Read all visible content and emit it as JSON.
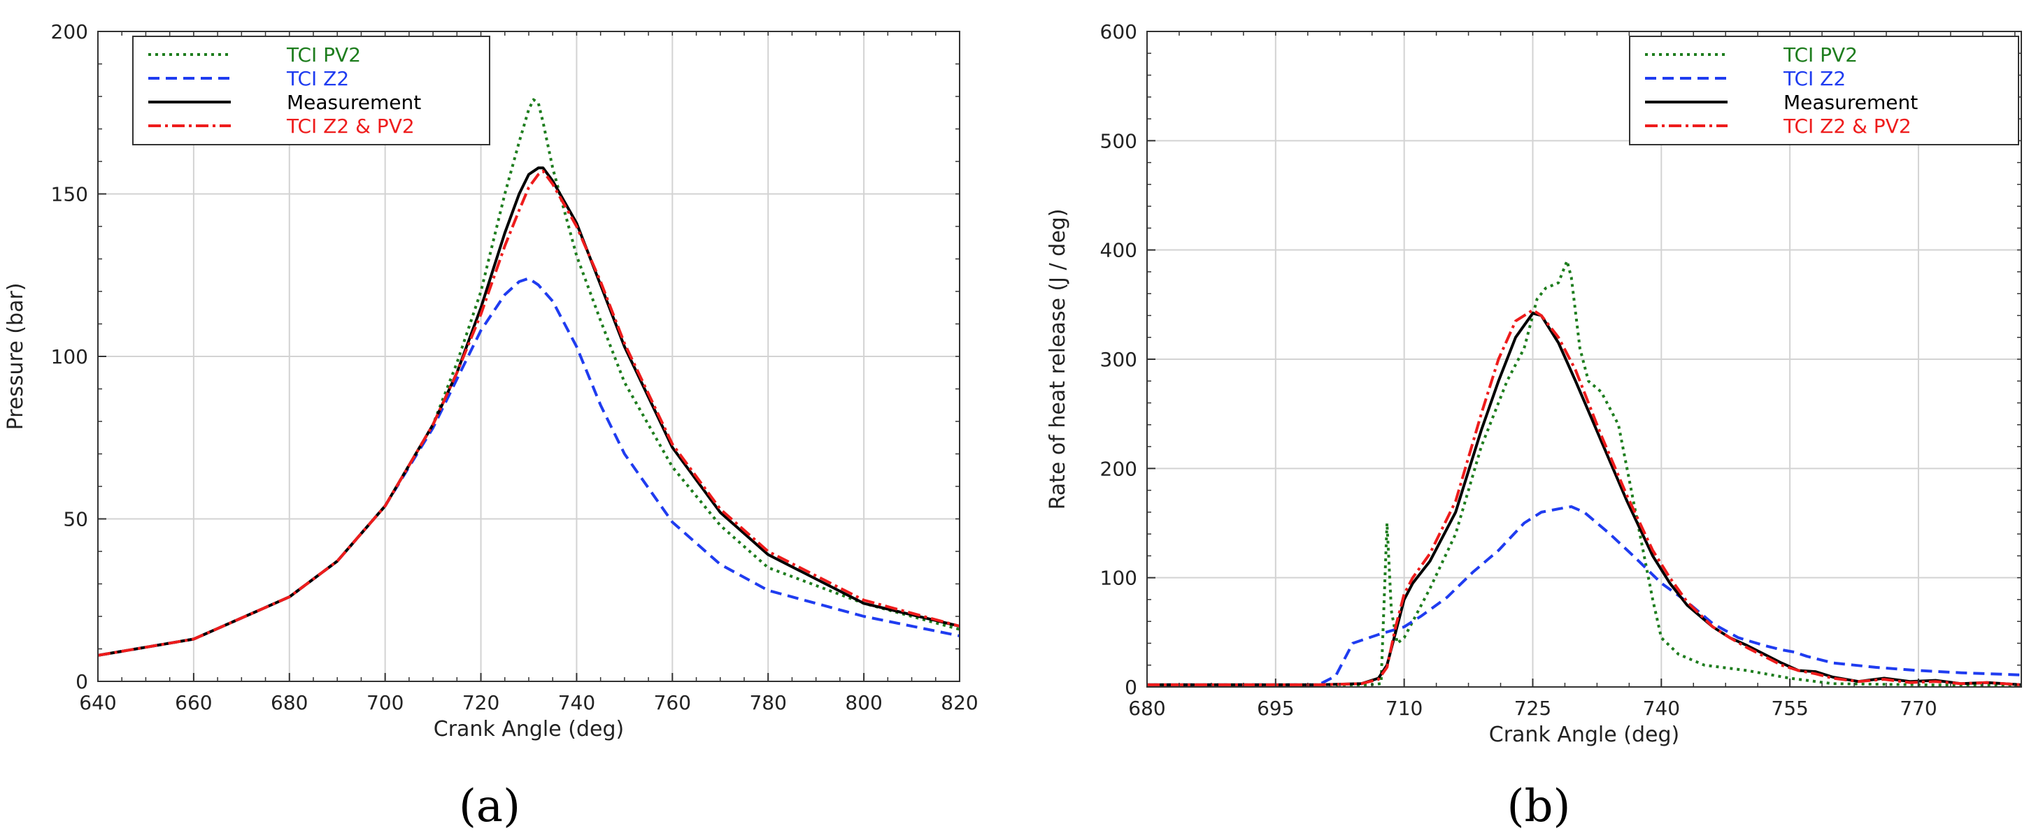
{
  "colors": {
    "tci_pv2": "#1e7d1e",
    "tci_z2": "#1f3cf0",
    "measurement": "#000000",
    "tci_z2_pv2": "#ee1c1c",
    "grid": "#d3d3d3"
  },
  "chart_data": [
    {
      "type": "line",
      "panel_label": "(a)",
      "xlabel": "Crank Angle (deg)",
      "ylabel": "Pressure (bar)",
      "xlim": [
        640,
        820
      ],
      "ylim": [
        0,
        200
      ],
      "xticks": [
        "640",
        "660",
        "680",
        "700",
        "720",
        "740",
        "760",
        "780",
        "800",
        "820"
      ],
      "yticks": [
        "0",
        "50",
        "100",
        "150",
        "200"
      ],
      "grid": true,
      "legend_position": "top-left",
      "series": [
        {
          "name": "TCI PV2",
          "key": "tci_pv2",
          "dash": "dot",
          "x": [
            640,
            660,
            680,
            690,
            700,
            710,
            715,
            720,
            725,
            728,
            730,
            731,
            732,
            733,
            735,
            740,
            745,
            750,
            760,
            770,
            780,
            800,
            820
          ],
          "y": [
            8,
            13,
            26,
            37,
            54,
            79,
            98,
            120,
            150,
            166,
            176,
            179,
            178,
            172,
            158,
            131,
            111,
            92,
            66,
            48,
            35,
            24,
            16
          ]
        },
        {
          "name": "TCI Z2",
          "key": "tci_z2",
          "dash": "dash",
          "x": [
            640,
            660,
            680,
            690,
            700,
            710,
            715,
            720,
            725,
            728,
            730,
            732,
            735,
            740,
            745,
            750,
            760,
            770,
            780,
            800,
            820
          ],
          "y": [
            8,
            13,
            26,
            37,
            54,
            78,
            93,
            108,
            119,
            123,
            124,
            122,
            117,
            103,
            85,
            70,
            49,
            36,
            28,
            20,
            14
          ]
        },
        {
          "name": "Measurement",
          "key": "measurement",
          "dash": "solid",
          "x": [
            640,
            660,
            680,
            690,
            700,
            710,
            715,
            720,
            725,
            728,
            730,
            732,
            733,
            735,
            740,
            745,
            750,
            760,
            770,
            780,
            800,
            820
          ],
          "y": [
            8,
            13,
            26,
            37,
            54,
            79,
            95,
            115,
            138,
            150,
            156,
            158,
            158,
            154,
            141,
            122,
            103,
            72,
            52,
            39,
            24,
            17
          ]
        },
        {
          "name": "TCI Z2 & PV2",
          "key": "tci_z2_pv2",
          "dash": "dashdot",
          "x": [
            640,
            660,
            680,
            690,
            700,
            710,
            715,
            720,
            725,
            728,
            730,
            732,
            733,
            735,
            740,
            745,
            750,
            760,
            770,
            780,
            800,
            820
          ],
          "y": [
            8,
            13,
            26,
            37,
            54,
            79,
            95,
            113,
            134,
            145,
            152,
            156,
            157,
            153,
            140,
            123,
            104,
            73,
            53,
            40,
            25,
            17
          ]
        }
      ]
    },
    {
      "type": "line",
      "panel_label": "(b)",
      "xlabel": "Crank Angle (deg)",
      "ylabel": "Rate of heat release (J / deg)",
      "xlim": [
        680,
        782
      ],
      "ylim": [
        0,
        600
      ],
      "xticks": [
        "680",
        "695",
        "710",
        "725",
        "740",
        "755",
        "770"
      ],
      "yticks": [
        "0",
        "100",
        "200",
        "300",
        "400",
        "500",
        "600"
      ],
      "grid": true,
      "legend_position": "top-right",
      "series": [
        {
          "name": "TCI PV2",
          "key": "tci_pv2",
          "dash": "dot",
          "x": [
            680,
            700,
            706,
            707.3,
            708,
            708.5,
            709.2,
            710,
            711,
            713,
            716,
            719,
            722,
            724,
            725.5,
            726.5,
            728,
            729,
            729.5,
            730.5,
            731.5,
            733,
            735,
            737,
            739,
            740,
            742,
            745,
            750,
            755,
            760,
            770,
            782
          ],
          "y": [
            2,
            2,
            2,
            3,
            150,
            70,
            40,
            45,
            60,
            90,
            140,
            220,
            280,
            310,
            355,
            365,
            370,
            390,
            375,
            310,
            280,
            270,
            240,
            160,
            80,
            45,
            30,
            20,
            15,
            8,
            3,
            2,
            1
          ]
        },
        {
          "name": "TCI Z2",
          "key": "tci_z2",
          "dash": "dash",
          "x": [
            680,
            700,
            702,
            704,
            707,
            710,
            712,
            715,
            718,
            721,
            724,
            726,
            728,
            729.5,
            731,
            734,
            737,
            740,
            743,
            746,
            749,
            752,
            754,
            755.5,
            757,
            760,
            765,
            770,
            775,
            782
          ],
          "y": [
            2,
            2,
            10,
            40,
            48,
            55,
            65,
            82,
            105,
            125,
            150,
            160,
            163,
            165,
            160,
            140,
            118,
            95,
            78,
            58,
            45,
            38,
            34,
            32,
            28,
            22,
            18,
            15,
            13,
            11
          ]
        },
        {
          "name": "Measurement",
          "key": "measurement",
          "dash": "solid",
          "x": [
            680,
            700,
            705,
            707,
            708,
            709,
            710,
            711,
            713,
            716,
            719,
            721,
            723,
            725,
            726,
            728,
            730,
            733,
            736,
            739,
            741,
            743,
            746,
            748,
            750,
            752,
            754,
            756,
            758,
            760,
            763,
            766,
            769,
            772,
            775,
            778,
            782
          ],
          "y": [
            2,
            2,
            3,
            8,
            20,
            50,
            80,
            95,
            115,
            160,
            235,
            280,
            320,
            342,
            340,
            315,
            280,
            225,
            170,
            120,
            95,
            75,
            55,
            45,
            38,
            30,
            22,
            15,
            14,
            9,
            5,
            8,
            5,
            6,
            3,
            4,
            2
          ]
        },
        {
          "name": "TCI Z2 & PV2",
          "key": "tci_z2_pv2",
          "dash": "dashdot",
          "x": [
            680,
            700,
            705,
            707,
            708,
            709,
            710,
            711,
            713,
            716,
            719,
            721,
            723,
            725,
            726,
            728,
            730,
            733,
            736,
            739,
            741,
            743,
            746,
            748,
            750,
            752,
            754,
            756,
            758,
            760,
            763,
            766,
            769,
            772,
            775,
            778,
            782
          ],
          "y": [
            2,
            2,
            3,
            7,
            18,
            55,
            85,
            100,
            122,
            170,
            250,
            300,
            335,
            345,
            340,
            320,
            290,
            230,
            175,
            125,
            100,
            78,
            55,
            45,
            36,
            28,
            20,
            15,
            12,
            8,
            5,
            7,
            4,
            5,
            3,
            4,
            2
          ]
        }
      ]
    }
  ]
}
